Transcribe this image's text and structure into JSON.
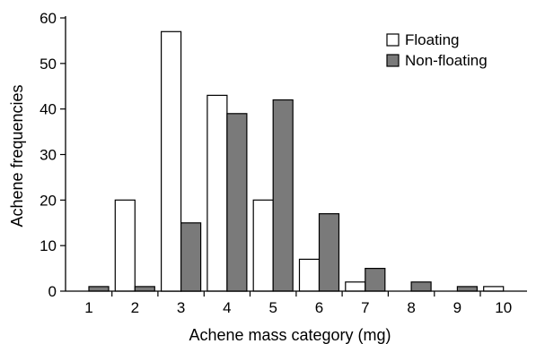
{
  "chart_data": {
    "type": "bar",
    "xlabel": "Achene mass category (mg)",
    "ylabel": "Achene frequencies",
    "categories": [
      "1",
      "2",
      "3",
      "4",
      "5",
      "6",
      "7",
      "8",
      "9",
      "10"
    ],
    "ylim": [
      0,
      60
    ],
    "yticks": [
      "0",
      "10",
      "20",
      "30",
      "40",
      "50",
      "60"
    ],
    "grid": false,
    "legend_position": "top-right",
    "series": [
      {
        "name": "Floating",
        "color": "#ffffff",
        "values": [
          0,
          20,
          57,
          43,
          20,
          7,
          2,
          0,
          0,
          1
        ]
      },
      {
        "name": "Non-floating",
        "color": "#7a7a7a",
        "values": [
          1,
          1,
          15,
          39,
          42,
          17,
          5,
          2,
          1,
          0
        ]
      }
    ]
  }
}
